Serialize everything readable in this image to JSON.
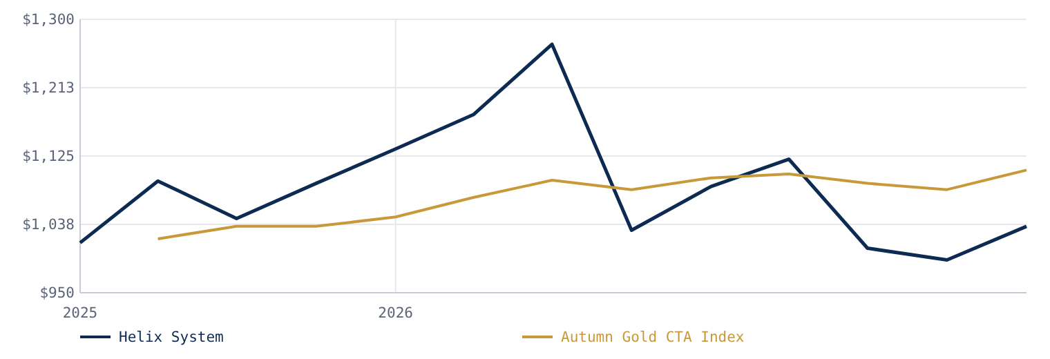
{
  "chart_data": {
    "type": "line",
    "x": [
      "2025-01",
      "2025-04",
      "2025-07",
      "2025-10",
      "2026-01",
      "2026-04",
      "2026-07",
      "2026-10",
      "2027-01",
      "2027-04",
      "2027-07",
      "2027-10",
      "2028-01"
    ],
    "series": [
      {
        "name": "Helix System",
        "color": "#0d2b52",
        "values": [
          1014,
          1093,
          1045,
          1090,
          1134,
          1178,
          1268,
          1030,
          1086,
          1121,
          1007,
          992,
          1035
        ]
      },
      {
        "name": "Autumn Gold CTA Index",
        "color": "#c8993a",
        "values": [
          null,
          1019,
          1035,
          1035,
          1047,
          1072,
          1094,
          1082,
          1097,
          1102,
          1090,
          1082,
          1107
        ]
      }
    ],
    "xlim": [
      "2025-01",
      "2028-01"
    ],
    "xticks": [
      {
        "value": "2025-01",
        "label": "2025"
      },
      {
        "value": "2026-01",
        "label": "2026"
      }
    ],
    "ylim": [
      950,
      1300
    ],
    "yticks": [
      {
        "value": 950,
        "label": "$950"
      },
      {
        "value": 1037.5,
        "label": "$1,038"
      },
      {
        "value": 1125,
        "label": "$1,125"
      },
      {
        "value": 1212.5,
        "label": "$1,213"
      },
      {
        "value": 1300,
        "label": "$1,300"
      }
    ],
    "grid": true,
    "legend": "bottom",
    "marker": "none",
    "line_style": "solid"
  }
}
